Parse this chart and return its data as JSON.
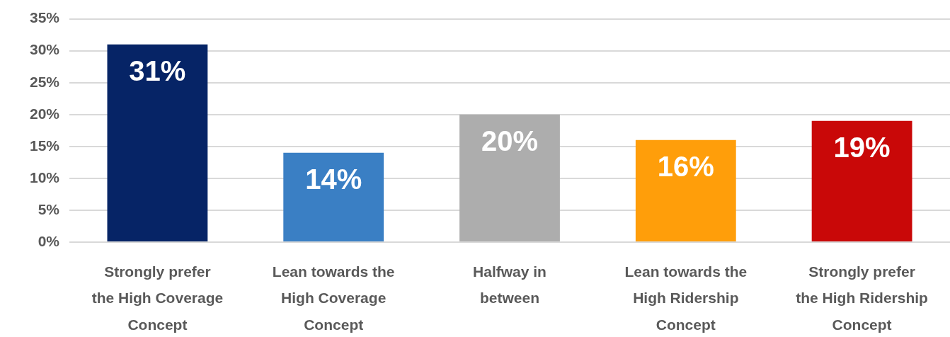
{
  "chart_data": {
    "type": "bar",
    "categories": [
      "Strongly prefer\nthe High Coverage\nConcept",
      "Lean towards the\nHigh Coverage\nConcept",
      "Halfway in\nbetween",
      "Lean towards the\nHigh Ridership\nConcept",
      "Strongly prefer\nthe High Ridership\nConcept"
    ],
    "values": [
      31,
      14,
      20,
      16,
      19
    ],
    "colors": [
      "#062466",
      "#3a7fc4",
      "#adadad",
      "#ff9e0a",
      "#c90808"
    ],
    "value_labels": [
      "31%",
      "14%",
      "20%",
      "16%",
      "19%"
    ],
    "ylim": [
      0,
      35
    ],
    "yticks": [
      {
        "value": 0,
        "label": "0%"
      },
      {
        "value": 5,
        "label": "5%"
      },
      {
        "value": 10,
        "label": "10%"
      },
      {
        "value": 15,
        "label": "15%"
      },
      {
        "value": 20,
        "label": "20%"
      },
      {
        "value": 25,
        "label": "25%"
      },
      {
        "value": 30,
        "label": "30%"
      },
      {
        "value": 35,
        "label": "35%"
      }
    ],
    "grid": "y"
  }
}
